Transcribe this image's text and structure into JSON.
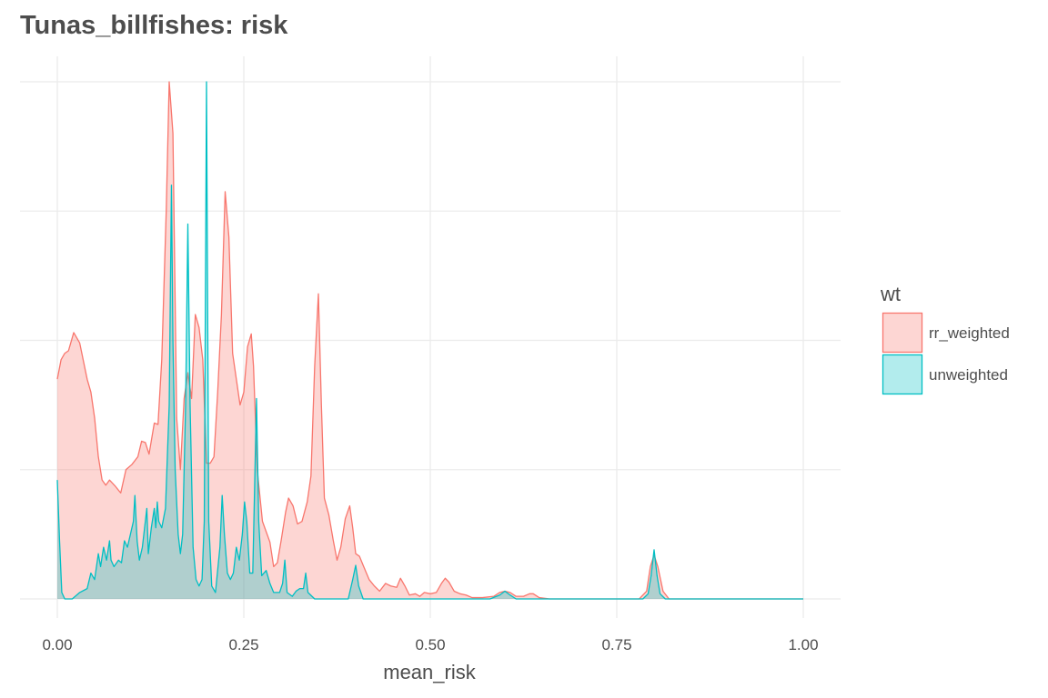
{
  "chart_data": {
    "type": "area",
    "title": "Tunas_billfishes: risk",
    "xlabel": "mean_risk",
    "ylabel": "",
    "xlim": [
      0,
      1
    ],
    "ylim": [
      0,
      4.2
    ],
    "x_ticks": [
      0,
      0.25,
      0.5,
      0.75,
      1
    ],
    "x_tick_labels": [
      "0.00",
      "0.25",
      "0.50",
      "0.75",
      "1.00"
    ],
    "y_gridlines": [
      0,
      1,
      2,
      3,
      4
    ],
    "y_tick_labels_shown": false,
    "grid": true,
    "legend": {
      "title": "wt",
      "position": "right"
    },
    "series": [
      {
        "name": "rr_weighted",
        "fill": "#f8766d",
        "fill_opacity": 0.3,
        "stroke": "#f8766d",
        "points": [
          [
            0.0,
            1.7
          ],
          [
            0.005,
            1.85
          ],
          [
            0.01,
            1.9
          ],
          [
            0.015,
            1.92
          ],
          [
            0.022,
            2.06
          ],
          [
            0.03,
            1.98
          ],
          [
            0.04,
            1.7
          ],
          [
            0.045,
            1.6
          ],
          [
            0.05,
            1.4
          ],
          [
            0.055,
            1.1
          ],
          [
            0.06,
            0.92
          ],
          [
            0.065,
            0.88
          ],
          [
            0.07,
            0.92
          ],
          [
            0.078,
            0.87
          ],
          [
            0.085,
            0.82
          ],
          [
            0.092,
            1.0
          ],
          [
            0.1,
            1.04
          ],
          [
            0.108,
            1.1
          ],
          [
            0.113,
            1.22
          ],
          [
            0.118,
            1.21
          ],
          [
            0.123,
            1.12
          ],
          [
            0.13,
            1.36
          ],
          [
            0.135,
            1.35
          ],
          [
            0.14,
            1.85
          ],
          [
            0.146,
            3.0
          ],
          [
            0.15,
            4.0
          ],
          [
            0.155,
            3.6
          ],
          [
            0.16,
            1.4
          ],
          [
            0.165,
            1.0
          ],
          [
            0.17,
            1.55
          ],
          [
            0.175,
            1.75
          ],
          [
            0.18,
            1.55
          ],
          [
            0.185,
            2.2
          ],
          [
            0.19,
            2.1
          ],
          [
            0.195,
            1.85
          ],
          [
            0.2,
            1.05
          ],
          [
            0.205,
            1.05
          ],
          [
            0.21,
            1.1
          ],
          [
            0.215,
            1.6
          ],
          [
            0.22,
            2.2
          ],
          [
            0.225,
            3.15
          ],
          [
            0.23,
            2.8
          ],
          [
            0.235,
            1.9
          ],
          [
            0.24,
            1.7
          ],
          [
            0.245,
            1.5
          ],
          [
            0.25,
            1.6
          ],
          [
            0.255,
            1.95
          ],
          [
            0.26,
            2.05
          ],
          [
            0.263,
            1.8
          ],
          [
            0.268,
            1.0
          ],
          [
            0.275,
            0.6
          ],
          [
            0.285,
            0.44
          ],
          [
            0.29,
            0.25
          ],
          [
            0.295,
            0.28
          ],
          [
            0.3,
            0.45
          ],
          [
            0.306,
            0.67
          ],
          [
            0.31,
            0.78
          ],
          [
            0.316,
            0.72
          ],
          [
            0.322,
            0.58
          ],
          [
            0.328,
            0.6
          ],
          [
            0.335,
            0.75
          ],
          [
            0.34,
            0.95
          ],
          [
            0.345,
            1.8
          ],
          [
            0.35,
            2.36
          ],
          [
            0.354,
            1.5
          ],
          [
            0.358,
            0.78
          ],
          [
            0.364,
            0.65
          ],
          [
            0.37,
            0.45
          ],
          [
            0.375,
            0.3
          ],
          [
            0.38,
            0.4
          ],
          [
            0.386,
            0.62
          ],
          [
            0.392,
            0.72
          ],
          [
            0.396,
            0.55
          ],
          [
            0.4,
            0.35
          ],
          [
            0.405,
            0.33
          ],
          [
            0.41,
            0.26
          ],
          [
            0.418,
            0.15
          ],
          [
            0.425,
            0.1
          ],
          [
            0.432,
            0.06
          ],
          [
            0.44,
            0.12
          ],
          [
            0.447,
            0.1
          ],
          [
            0.455,
            0.09
          ],
          [
            0.46,
            0.16
          ],
          [
            0.466,
            0.1
          ],
          [
            0.472,
            0.03
          ],
          [
            0.48,
            0.04
          ],
          [
            0.486,
            0.02
          ],
          [
            0.492,
            0.05
          ],
          [
            0.5,
            0.04
          ],
          [
            0.508,
            0.05
          ],
          [
            0.515,
            0.12
          ],
          [
            0.52,
            0.16
          ],
          [
            0.525,
            0.13
          ],
          [
            0.532,
            0.06
          ],
          [
            0.54,
            0.04
          ],
          [
            0.548,
            0.03
          ],
          [
            0.556,
            0.01
          ],
          [
            0.57,
            0.01
          ],
          [
            0.585,
            0.02
          ],
          [
            0.593,
            0.05
          ],
          [
            0.6,
            0.06
          ],
          [
            0.607,
            0.05
          ],
          [
            0.615,
            0.02
          ],
          [
            0.625,
            0.02
          ],
          [
            0.633,
            0.04
          ],
          [
            0.638,
            0.04
          ],
          [
            0.646,
            0.01
          ],
          [
            0.66,
            0.0
          ],
          [
            0.7,
            0.0
          ],
          [
            0.78,
            0.0
          ],
          [
            0.79,
            0.06
          ],
          [
            0.795,
            0.25
          ],
          [
            0.8,
            0.34
          ],
          [
            0.805,
            0.25
          ],
          [
            0.812,
            0.06
          ],
          [
            0.82,
            0.0
          ],
          [
            1.0,
            0.0
          ]
        ]
      },
      {
        "name": "unweighted",
        "fill": "#00bfc4",
        "fill_opacity": 0.3,
        "stroke": "#00bfc4",
        "points": [
          [
            0.0,
            0.92
          ],
          [
            0.003,
            0.45
          ],
          [
            0.006,
            0.05
          ],
          [
            0.01,
            0.0
          ],
          [
            0.02,
            0.0
          ],
          [
            0.03,
            0.05
          ],
          [
            0.04,
            0.08
          ],
          [
            0.045,
            0.2
          ],
          [
            0.05,
            0.15
          ],
          [
            0.055,
            0.35
          ],
          [
            0.058,
            0.25
          ],
          [
            0.062,
            0.4
          ],
          [
            0.066,
            0.3
          ],
          [
            0.07,
            0.45
          ],
          [
            0.072,
            0.3
          ],
          [
            0.076,
            0.25
          ],
          [
            0.082,
            0.3
          ],
          [
            0.086,
            0.28
          ],
          [
            0.09,
            0.45
          ],
          [
            0.094,
            0.4
          ],
          [
            0.098,
            0.5
          ],
          [
            0.102,
            0.6
          ],
          [
            0.104,
            0.8
          ],
          [
            0.107,
            0.45
          ],
          [
            0.11,
            0.3
          ],
          [
            0.114,
            0.4
          ],
          [
            0.118,
            0.6
          ],
          [
            0.12,
            0.7
          ],
          [
            0.122,
            0.35
          ],
          [
            0.126,
            0.55
          ],
          [
            0.13,
            0.7
          ],
          [
            0.132,
            0.55
          ],
          [
            0.134,
            0.75
          ],
          [
            0.136,
            0.6
          ],
          [
            0.14,
            0.55
          ],
          [
            0.145,
            0.7
          ],
          [
            0.15,
            1.5
          ],
          [
            0.153,
            3.2
          ],
          [
            0.155,
            2.0
          ],
          [
            0.158,
            1.0
          ],
          [
            0.162,
            0.5
          ],
          [
            0.165,
            0.35
          ],
          [
            0.168,
            0.5
          ],
          [
            0.172,
            1.5
          ],
          [
            0.175,
            2.9
          ],
          [
            0.178,
            1.5
          ],
          [
            0.182,
            0.4
          ],
          [
            0.186,
            0.15
          ],
          [
            0.19,
            0.1
          ],
          [
            0.194,
            0.15
          ],
          [
            0.197,
            0.6
          ],
          [
            0.2,
            4.0
          ],
          [
            0.203,
            0.6
          ],
          [
            0.207,
            0.1
          ],
          [
            0.212,
            0.05
          ],
          [
            0.218,
            0.4
          ],
          [
            0.221,
            0.8
          ],
          [
            0.224,
            0.5
          ],
          [
            0.228,
            0.2
          ],
          [
            0.232,
            0.15
          ],
          [
            0.236,
            0.2
          ],
          [
            0.24,
            0.4
          ],
          [
            0.244,
            0.3
          ],
          [
            0.248,
            0.5
          ],
          [
            0.251,
            0.75
          ],
          [
            0.254,
            0.6
          ],
          [
            0.258,
            0.2
          ],
          [
            0.262,
            0.2
          ],
          [
            0.265,
            1.0
          ],
          [
            0.267,
            1.55
          ],
          [
            0.27,
            0.6
          ],
          [
            0.274,
            0.18
          ],
          [
            0.28,
            0.22
          ],
          [
            0.285,
            0.12
          ],
          [
            0.29,
            0.05
          ],
          [
            0.298,
            0.05
          ],
          [
            0.302,
            0.12
          ],
          [
            0.305,
            0.3
          ],
          [
            0.308,
            0.05
          ],
          [
            0.315,
            0.02
          ],
          [
            0.32,
            0.06
          ],
          [
            0.325,
            0.08
          ],
          [
            0.33,
            0.08
          ],
          [
            0.333,
            0.2
          ],
          [
            0.336,
            0.05
          ],
          [
            0.345,
            0.0
          ],
          [
            0.39,
            0.0
          ],
          [
            0.396,
            0.15
          ],
          [
            0.4,
            0.26
          ],
          [
            0.404,
            0.1
          ],
          [
            0.41,
            0.0
          ],
          [
            0.58,
            0.0
          ],
          [
            0.593,
            0.03
          ],
          [
            0.6,
            0.06
          ],
          [
            0.607,
            0.03
          ],
          [
            0.615,
            0.0
          ],
          [
            0.785,
            0.0
          ],
          [
            0.792,
            0.04
          ],
          [
            0.796,
            0.18
          ],
          [
            0.8,
            0.38
          ],
          [
            0.804,
            0.18
          ],
          [
            0.808,
            0.04
          ],
          [
            0.815,
            0.0
          ],
          [
            1.0,
            0.0
          ]
        ]
      }
    ]
  }
}
